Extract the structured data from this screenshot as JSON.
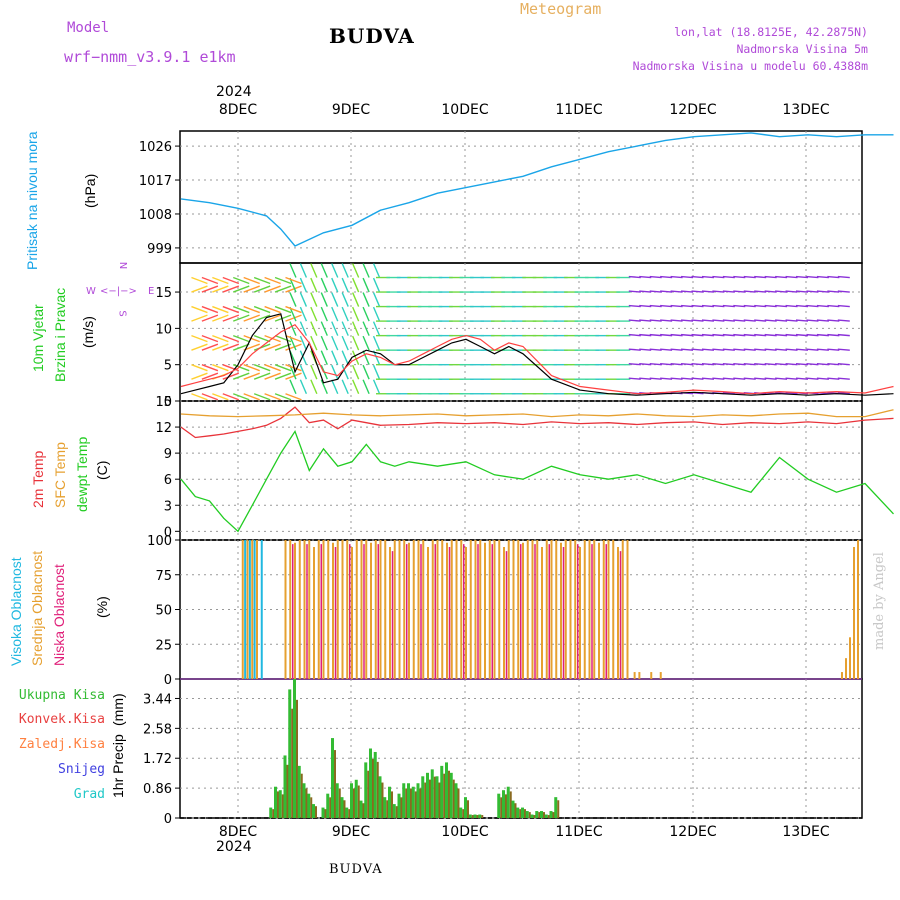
{
  "header": {
    "model_label": "Model",
    "model_name": "wrf−nmm_v3.9.1  e1km",
    "station": "BUDVA",
    "meteogram": "Meteogram",
    "lonlat": "lon,lat (18.8125E, 42.2875N)",
    "altitude": "Nadmorska Visina 5m",
    "model_altitude": "Nadmorska Visina u modelu 60.4388m",
    "year": "2024"
  },
  "footer": {
    "station": "BUDVA",
    "credit": "made by Angel",
    "year": "2024"
  },
  "colors": {
    "pressure": "#1aa5e8",
    "temp2m": "#e8333a",
    "sfc": "#e6a030",
    "dewpt": "#22cc22",
    "wind_speed": "#000000",
    "gust": "#ff4040",
    "high_cloud": "#20b8e0",
    "mid_cloud": "#e6a030",
    "low_cloud": "#e0207a",
    "precip_total": "#33bb33",
    "precip_conv": "#e84040",
    "freezing": "#ff8040",
    "snow": "#4040e0",
    "hail": "#20c8c8",
    "axis_label_purple": "#b04ad8",
    "grid": "#999999"
  },
  "chart_data": [
    {
      "type": "line",
      "panel": "pressure",
      "ylabel_name": "Pritisak na nivou mora",
      "unit": "(hPa)",
      "y_ticks": [
        "999",
        "1008",
        "1017",
        "1026"
      ],
      "ylim": [
        995,
        1030
      ],
      "x_ticks": [
        "8DEC",
        "9DEC",
        "10DEC",
        "11DEC",
        "12DEC",
        "13DEC"
      ],
      "x_hours": [
        0,
        6,
        12,
        18,
        21,
        24,
        30,
        36,
        42,
        48,
        54,
        60,
        66,
        72,
        78,
        84,
        90,
        96,
        102,
        108,
        114,
        120,
        126,
        132,
        138,
        144,
        150
      ],
      "series": [
        {
          "values": [
            1012,
            1011,
            1009.5,
            1007.5,
            1004,
            999.5,
            1003,
            1005,
            1009,
            1011,
            1013.5,
            1015,
            1016.5,
            1018,
            1020.5,
            1022.5,
            1024.5,
            1026,
            1027.5,
            1028.5,
            1029,
            1029.5,
            1028.5,
            1029,
            1028.5,
            1029,
            1029
          ]
        }
      ]
    },
    {
      "type": "line",
      "panel": "wind",
      "ylabel_name": "10m Vjetar",
      "ylabel_name2": "Brzina i Pravac",
      "unit": "(m/s)",
      "compass": {
        "n": "N",
        "s": "S",
        "e": "E",
        "w": "W"
      },
      "y_ticks": [
        "0",
        "5",
        "10",
        "15"
      ],
      "ylim": [
        0,
        19
      ],
      "x_hours": [
        0,
        3,
        6,
        9,
        12,
        15,
        18,
        21,
        24,
        27,
        30,
        33,
        36,
        39,
        42,
        45,
        48,
        51,
        54,
        57,
        60,
        63,
        66,
        69,
        72,
        78,
        84,
        90,
        96,
        102,
        108,
        114,
        120,
        126,
        132,
        138,
        144,
        150
      ],
      "series": [
        {
          "values": [
            1,
            1.5,
            2,
            2.5,
            5,
            9,
            11.5,
            12,
            4,
            8,
            2.5,
            3,
            6,
            7,
            6.5,
            5,
            5,
            6,
            7,
            8,
            8.5,
            7.5,
            6.5,
            7.5,
            6.5,
            3,
            1.5,
            1,
            0.8,
            1,
            1.2,
            1,
            0.8,
            1,
            0.8,
            1,
            0.8,
            1
          ]
        },
        {
          "values": [
            2,
            2.5,
            3,
            3.5,
            4.5,
            6.5,
            8,
            9.5,
            10.5,
            8,
            4,
            3.5,
            5.5,
            6.5,
            6,
            5,
            5.5,
            6.5,
            7.5,
            8.5,
            9,
            8.5,
            7,
            8,
            7.5,
            3.5,
            2,
            1.5,
            1,
            1.2,
            1.5,
            1.3,
            1,
            1.3,
            1.1,
            1.3,
            1.1,
            2
          ]
        }
      ]
    },
    {
      "type": "line",
      "panel": "temperature",
      "ylabel_name": "2m Temp",
      "ylabel_name2": "SFC Temp",
      "ylabel_name3": "dewpt Temp",
      "unit": "(C)",
      "y_ticks": [
        "0",
        "3",
        "6",
        "9",
        "12",
        "15"
      ],
      "ylim": [
        -1,
        15
      ],
      "series": [
        {
          "x_hours": [
            0,
            3,
            6,
            9,
            12,
            15,
            18,
            21,
            24,
            27,
            30,
            33,
            36,
            39,
            42,
            48,
            54,
            60,
            66,
            72,
            78,
            84,
            90,
            96,
            102,
            108,
            114,
            120,
            126,
            132,
            138,
            144,
            150
          ],
          "values": [
            12,
            10.8,
            11,
            11.2,
            11.5,
            11.8,
            12.2,
            13,
            14.3,
            12.5,
            12.8,
            11.8,
            12.8,
            12.5,
            12.2,
            12.3,
            12.5,
            12.4,
            12.5,
            12.3,
            12.6,
            12.4,
            12.5,
            12.3,
            12.5,
            12.6,
            12.3,
            12.5,
            12.4,
            12.6,
            12.4,
            12.8,
            13
          ]
        },
        {
          "x_hours": [
            0,
            6,
            12,
            18,
            24,
            30,
            36,
            42,
            48,
            54,
            60,
            66,
            72,
            78,
            84,
            90,
            96,
            102,
            108,
            114,
            120,
            126,
            132,
            138,
            144,
            150
          ],
          "values": [
            13.5,
            13.3,
            13.2,
            13.3,
            13.4,
            13.6,
            13.4,
            13.3,
            13.4,
            13.5,
            13.3,
            13.4,
            13.5,
            13.2,
            13.4,
            13.3,
            13.5,
            13.3,
            13.2,
            13.4,
            13.3,
            13.5,
            13.6,
            13.2,
            13.2,
            14
          ]
        },
        {
          "x_hours": [
            0,
            3,
            6,
            9,
            12,
            15,
            18,
            21,
            24,
            27,
            30,
            33,
            36,
            39,
            42,
            45,
            48,
            54,
            60,
            66,
            72,
            78,
            84,
            90,
            96,
            102,
            108,
            114,
            120,
            126,
            132,
            138,
            144,
            150
          ],
          "values": [
            6,
            4,
            3.5,
            1.5,
            0,
            3,
            6,
            9,
            11.5,
            7,
            9.5,
            7.5,
            8,
            10,
            8,
            7.5,
            8,
            7.5,
            8,
            6.5,
            6,
            7.5,
            6.5,
            6,
            6.5,
            5.5,
            6.5,
            5.5,
            4.5,
            8.5,
            6,
            4.5,
            5.5,
            2
          ]
        }
      ]
    },
    {
      "type": "bar",
      "panel": "cloud",
      "ylabel_name": "Visoka Oblacnost",
      "ylabel_name2": "Srednja Oblacnost",
      "ylabel_name3": "Niska Oblacnost",
      "unit": "(%)",
      "y_ticks": [
        "0",
        "25",
        "50",
        "75",
        "100"
      ],
      "ylim": [
        0,
        100
      ],
      "bar_hours_high": [
        13,
        13.5,
        14,
        14.5,
        15,
        15.5,
        16,
        17
      ],
      "bar_hours_mid_start": 22,
      "bar_hours_mid_end": 94,
      "mid_values": [
        100,
        100,
        98,
        100,
        100,
        100,
        95,
        100
      ],
      "end_mid_values": [
        5,
        15,
        30,
        95,
        100
      ],
      "late_mid_hours": [
        95.5,
        96.5,
        99,
        101
      ]
    },
    {
      "type": "bar",
      "panel": "precip",
      "ylabel_name": "1hr Precip",
      "unit": "(mm)",
      "y_ticks": [
        "0",
        "0.86",
        "1.72",
        "2.58",
        "3.44"
      ],
      "ylim": [
        0,
        4.0
      ],
      "legend": [
        "Ukupna Kisa",
        "Konvek.Kisa",
        "Zaledj.Kisa",
        "Snijeg",
        "Grad"
      ],
      "x_ticks": [
        "8DEC",
        "9DEC",
        "10DEC",
        "11DEC",
        "12DEC",
        "13DEC"
      ],
      "x_hours": [
        19,
        20,
        21,
        22,
        23,
        24,
        25,
        26,
        27,
        28,
        30,
        31,
        32,
        33,
        34,
        35,
        36,
        37,
        38,
        39,
        40,
        41,
        42,
        43,
        44,
        45,
        46,
        47,
        48,
        49,
        50,
        51,
        52,
        53,
        54,
        55,
        56,
        57,
        58,
        59,
        60,
        61,
        62,
        63,
        64,
        67,
        68,
        69,
        70,
        71,
        72,
        73,
        74,
        75,
        76,
        77,
        78,
        79
      ],
      "values": [
        0.3,
        0.9,
        0.8,
        1.8,
        3.7,
        4.0,
        1.5,
        1.0,
        0.7,
        0.4,
        0.3,
        0.7,
        2.3,
        1.0,
        0.6,
        0.3,
        1.0,
        1.1,
        0.5,
        1.6,
        2.0,
        1.9,
        1.2,
        0.6,
        0.9,
        0.4,
        0.7,
        1.0,
        1.0,
        0.9,
        1.0,
        1.2,
        1.3,
        1.4,
        1.2,
        1.5,
        1.6,
        1.3,
        1.0,
        0.3,
        0.6,
        0.1,
        0.1,
        0.1,
        0.0,
        0.7,
        0.8,
        0.9,
        0.5,
        0.3,
        0.3,
        0.2,
        0.1,
        0.2,
        0.2,
        0.1,
        0.2,
        0.6
      ]
    }
  ]
}
